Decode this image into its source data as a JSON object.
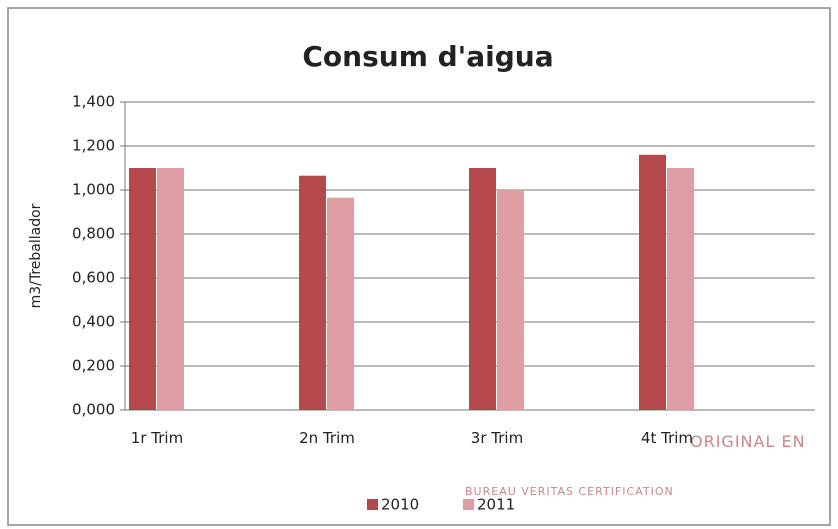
{
  "chart_data": {
    "type": "bar",
    "title": "Consum d'aigua",
    "y_label": "m3/Treballador",
    "categories": [
      "1r Trim",
      "2n Trim",
      "3r Trim",
      "4t Trim"
    ],
    "series": [
      {
        "name": "2010",
        "color": "#b5484c",
        "values": [
          1.1,
          1.065,
          1.1,
          1.16
        ]
      },
      {
        "name": "2011",
        "color": "#dc9ea2",
        "values": [
          1.1,
          0.965,
          1.0,
          1.1
        ]
      }
    ],
    "ylim": [
      0,
      1.4
    ],
    "yticks": [
      {
        "value": 0,
        "label": "0,000"
      },
      {
        "value": 0.2,
        "label": "0,200"
      },
      {
        "value": 0.4,
        "label": "0,400"
      },
      {
        "value": 0.6,
        "label": "0,600"
      },
      {
        "value": 0.8,
        "label": "0,800"
      },
      {
        "value": 1.0,
        "label": "1,000"
      },
      {
        "value": 1.2,
        "label": "1,200"
      },
      {
        "value": 1.4,
        "label": "1,400"
      }
    ],
    "grid": true,
    "legend": "bottom"
  },
  "stamp": {
    "lines": [
      "ORIGINAL EN",
      "BUREAU VERITAS CERTIFICATION"
    ]
  }
}
